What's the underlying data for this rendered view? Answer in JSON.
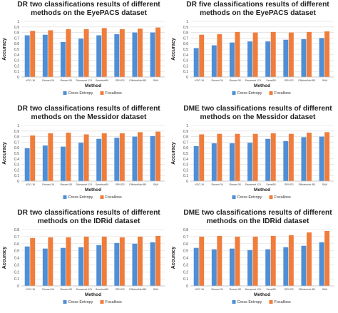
{
  "colors": {
    "cross_entropy": "#4f8fd6",
    "focalloss": "#f07d3c",
    "grid": "#d9d9d9"
  },
  "chart_data": [
    {
      "type": "bar",
      "title_lines": [
        "DR two classifications results of different",
        "methods on the EyePACS dataset"
      ],
      "xlabel": "Method",
      "ylabel": "Accuracy",
      "ylim": [
        0,
        1
      ],
      "yticks": [
        "0",
        "0.1",
        "0.2",
        "0.3",
        "0.4",
        "0.5",
        "0.6",
        "0.7",
        "0.8",
        "0.9",
        "1"
      ],
      "categories": [
        "VGG-16",
        "Resnet-34",
        "Resnet-50",
        "Densenet-121",
        "Senetnet50",
        "SPN-R2",
        "EfficientNet-B0",
        "SAN"
      ],
      "series": [
        {
          "name": "Cross Entropy",
          "values": [
            0.75,
            0.76,
            0.63,
            0.69,
            0.75,
            0.77,
            0.8,
            0.8
          ]
        },
        {
          "name": "Focalloss",
          "values": [
            0.83,
            0.84,
            0.86,
            0.86,
            0.88,
            0.86,
            0.87,
            0.89
          ]
        }
      ],
      "legend": "bottom"
    },
    {
      "type": "bar",
      "title_lines": [
        "DR five classifications results of different",
        "methods on the EyePACS dataset"
      ],
      "xlabel": "Method",
      "ylabel": "Accuracy",
      "ylim": [
        0,
        1
      ],
      "yticks": [
        "0",
        "0.1",
        "0.2",
        "0.3",
        "0.4",
        "0.5",
        "0.6",
        "0.7",
        "0.8",
        "0.9",
        "1"
      ],
      "categories": [
        "VGG 16",
        "Resnet 34",
        "Resnet 50",
        "Densenet 121",
        "Senet50",
        "SPN-R2",
        "EfficientNet-B0",
        "SAN"
      ],
      "series": [
        {
          "name": "Cross Entropy",
          "values": [
            0.52,
            0.57,
            0.62,
            0.64,
            0.64,
            0.67,
            0.68,
            0.7
          ]
        },
        {
          "name": "Focalloss",
          "values": [
            0.76,
            0.77,
            0.81,
            0.8,
            0.81,
            0.8,
            0.81,
            0.82
          ]
        }
      ],
      "legend": "bottom"
    },
    {
      "type": "bar",
      "title_lines": [
        "DR two classifications results of different",
        "methods on the Messidor dataset"
      ],
      "xlabel": "Method",
      "ylabel": "Accuracy",
      "ylim": [
        0,
        1
      ],
      "yticks": [
        "0",
        "0.1",
        "0.2",
        "0.3",
        "0.4",
        "0.5",
        "0.6",
        "0.7",
        "0.8",
        "0.9",
        "1"
      ],
      "categories": [
        "VGG-16",
        "Resnet-34",
        "Resnet-50",
        "Densenet-121",
        "Senetnet50",
        "SPN-R2",
        "EfficientNet-B0",
        "SAN"
      ],
      "series": [
        {
          "name": "Cross Entropy",
          "values": [
            0.59,
            0.64,
            0.62,
            0.69,
            0.76,
            0.78,
            0.8,
            0.81
          ]
        },
        {
          "name": "Focalloss",
          "values": [
            0.82,
            0.86,
            0.87,
            0.84,
            0.86,
            0.86,
            0.88,
            0.89
          ]
        }
      ],
      "legend": "bottom"
    },
    {
      "type": "bar",
      "title_lines": [
        "DME two classifications results of different",
        "methods on the Messidor dataset"
      ],
      "xlabel": "Method",
      "ylabel": "Accuracy",
      "ylim": [
        0,
        1
      ],
      "yticks": [
        "0",
        "0.1",
        "0.2",
        "0.3",
        "0.4",
        "0.5",
        "0.6",
        "0.7",
        "0.8",
        "0.9",
        "1"
      ],
      "categories": [
        "VGG 16",
        "Resnet 34",
        "Resnet 50",
        "Densenet 121",
        "Senet50",
        "SPN R2",
        "Efficientnet-B0",
        "SAN"
      ],
      "series": [
        {
          "name": "Cross Entropy",
          "values": [
            0.63,
            0.68,
            0.68,
            0.69,
            0.76,
            0.72,
            0.79,
            0.8
          ]
        },
        {
          "name": "Focalloss",
          "values": [
            0.84,
            0.85,
            0.85,
            0.85,
            0.86,
            0.85,
            0.87,
            0.88
          ]
        }
      ],
      "legend": "bottom"
    },
    {
      "type": "bar",
      "title_lines": [
        "DR two classifications results of different",
        "methods on the IDRid dataset"
      ],
      "xlabel": "Method",
      "ylabel": "Accuracy",
      "ylim": [
        0,
        0.8
      ],
      "yticks": [
        "0",
        "0.1",
        "0.2",
        "0.3",
        "0.4",
        "0.5",
        "0.6",
        "0.7",
        "0.8"
      ],
      "categories": [
        "VGG-16",
        "Resnet-34",
        "Resnet-50",
        "Densenet-121",
        "Senetnet50",
        "SPN-R2",
        "EfficientNet-B0",
        "SAN"
      ],
      "series": [
        {
          "name": "Cross Entropy",
          "values": [
            0.56,
            0.53,
            0.54,
            0.55,
            0.58,
            0.61,
            0.6,
            0.62
          ]
        },
        {
          "name": "Focalloss",
          "values": [
            0.68,
            0.69,
            0.69,
            0.7,
            0.7,
            0.69,
            0.7,
            0.71
          ]
        }
      ],
      "legend": "bottom"
    },
    {
      "type": "bar",
      "title_lines": [
        "DME two classifications results of different",
        "methods on the IDRid dataset"
      ],
      "xlabel": "Method",
      "ylabel": "Accuracy",
      "ylim": [
        0,
        0.8
      ],
      "yticks": [
        "0",
        "0.1",
        "0.2",
        "0.3",
        "0.4",
        "0.5",
        "0.6",
        "0.7",
        "0.8"
      ],
      "categories": [
        "VGG 16",
        "Resnet 34",
        "Resnet 50",
        "Densenet 121",
        "Senet50",
        "SPN R2",
        "Efficientnet-B0",
        "SAN"
      ],
      "series": [
        {
          "name": "Cross Entropy",
          "values": [
            0.54,
            0.52,
            0.53,
            0.51,
            0.52,
            0.55,
            0.57,
            0.62
          ]
        },
        {
          "name": "Focalloss",
          "values": [
            0.7,
            0.71,
            0.7,
            0.7,
            0.71,
            0.72,
            0.76,
            0.78
          ]
        }
      ],
      "legend": "bottom"
    }
  ]
}
